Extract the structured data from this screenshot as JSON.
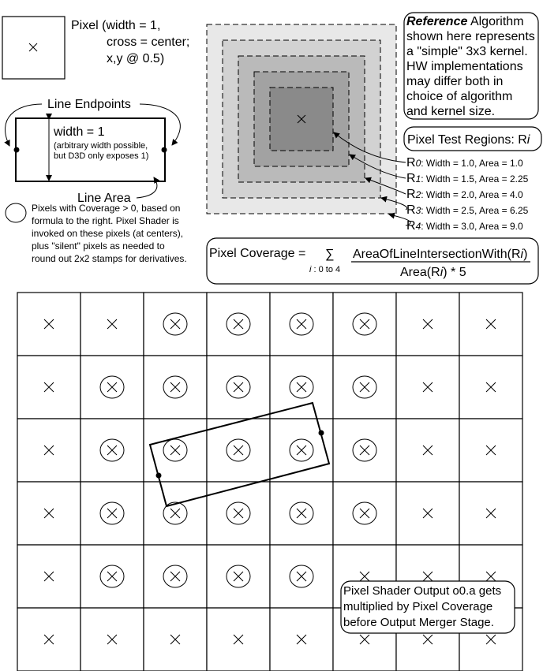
{
  "pixel_legend": {
    "line1": "Pixel (width = 1,",
    "line2": "cross = center;",
    "line3": "x,y @ 0.5)"
  },
  "line_legend": {
    "endpoints_label": "Line Endpoints",
    "width_label": "width = 1",
    "width_note1": "(arbitrary width possible,",
    "width_note2": "but D3D only exposes 1)",
    "area_label": "Line Area"
  },
  "coverage_legend": {
    "lines": [
      "Pixels with Coverage > 0, based on",
      "formula to the right.  Pixel Shader is",
      "invoked on these pixels (at centers),",
      "plus \"silent\" pixels as needed to",
      "round out 2x2 stamps for derivatives."
    ]
  },
  "reference_note": {
    "bold": "Reference",
    "lines": [
      " Algorithm",
      "shown here represents",
      "a \"simple\" 3x3 kernel.",
      "HW implementations",
      "may differ both in",
      "choice of algorithm",
      "and kernel size."
    ]
  },
  "test_regions": {
    "title": "Pixel Test Regions: R",
    "title_sub": "i",
    "regions": [
      {
        "r": "R",
        "i": "0",
        "desc": ": Width = 1.0, Area = 1.0",
        "fill": "#8a8a8a"
      },
      {
        "r": "R",
        "i": "1",
        "desc": ": Width = 1.5, Area = 2.25",
        "fill": "#a2a2a2"
      },
      {
        "r": "R",
        "i": "2",
        "desc": ": Width = 2.0, Area = 4.0",
        "fill": "#bababa"
      },
      {
        "r": "R",
        "i": "3",
        "desc": ": Width = 2.5, Area = 6.25",
        "fill": "#d2d2d2"
      },
      {
        "r": "R",
        "i": "4",
        "desc": ": Width = 3.0, Area = 9.0",
        "fill": "#e8e8e8"
      }
    ]
  },
  "formula": {
    "lhs": "Pixel Coverage =",
    "sigma": "∑",
    "range_i": "i",
    "range": " : 0 to 4",
    "num_a": "AreaOfLineIntersectionWith(R",
    "num_i": "i",
    "num_b": ")",
    "den_a": "Area(R",
    "den_i": "i",
    "den_b": ") * 5"
  },
  "output_note": {
    "lines": [
      "Pixel Shader Output o0.a gets",
      "multiplied by Pixel Coverage",
      "before Output Merger Stage."
    ]
  },
  "grid": {
    "covered": [
      [
        0,
        0,
        1,
        1,
        1,
        1,
        0,
        0
      ],
      [
        0,
        1,
        1,
        1,
        1,
        1,
        0,
        0
      ],
      [
        0,
        1,
        1,
        1,
        1,
        1,
        0,
        0
      ],
      [
        0,
        1,
        1,
        1,
        1,
        1,
        0,
        0
      ],
      [
        0,
        1,
        1,
        1,
        1,
        0,
        0,
        0
      ],
      [
        0,
        0,
        0,
        0,
        0,
        0,
        0,
        0
      ]
    ]
  }
}
